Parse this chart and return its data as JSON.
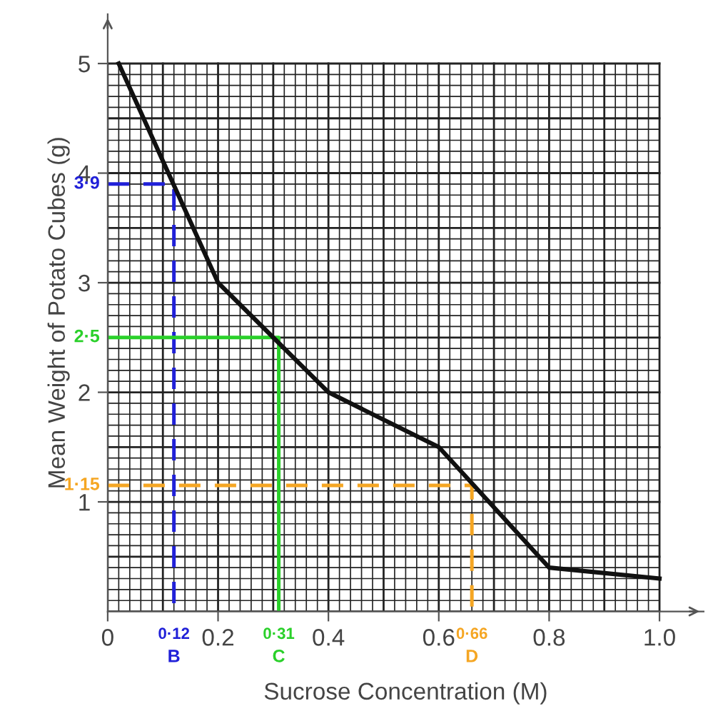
{
  "chart_data": {
    "type": "line",
    "xlabel": "Sucrose Concentration (M)",
    "ylabel": "Mean Weight of Potato Cubes (g)",
    "xlim": [
      0,
      1.08
    ],
    "ylim": [
      0,
      5.45
    ],
    "xticks": [
      0,
      0.2,
      0.4,
      0.6,
      0.8,
      {
        "value": 1.0,
        "label": "1.0"
      }
    ],
    "yticks": [
      1,
      2,
      3,
      4,
      5
    ],
    "grid": true,
    "marker": "none",
    "series": [
      {
        "color": "#111111",
        "x": [
          0.02,
          0.2,
          0.4,
          0.6,
          0.8,
          1.0
        ],
        "values": [
          5,
          3.0,
          2.0,
          1.5,
          0.4,
          0.3
        ],
        "line_style": "solid"
      },
      {
        "color": "#2020d8",
        "x": [
          0,
          0.12,
          0.12
        ],
        "values": [
          3.9,
          3.9,
          0
        ],
        "line_style": "dashed"
      },
      {
        "color": "#2ad02a",
        "x": [
          0,
          0.31,
          0.31
        ],
        "values": [
          2.5,
          2.5,
          0
        ],
        "line_style": "solid"
      },
      {
        "color": "#f5a623",
        "x": [
          0,
          0.66,
          0.66
        ],
        "values": [
          1.15,
          1.15,
          0
        ],
        "line_style": "dashed"
      }
    ],
    "annotations": [
      {
        "text": "3·9",
        "x": 0,
        "y": 3.9
      },
      {
        "text": "2·5",
        "x": 0,
        "y": 2.5
      },
      {
        "text": "1·15",
        "x": 0,
        "y": 1.15
      },
      {
        "text": "0·12",
        "x": 0.12,
        "y": 0
      },
      {
        "text": "B",
        "x": 0.12,
        "y": 0
      },
      {
        "text": "0·31",
        "x": 0.31,
        "y": 0
      },
      {
        "text": "C",
        "x": 0.31,
        "y": 0
      },
      {
        "text": "0·66",
        "x": 0.66,
        "y": 0
      },
      {
        "text": "D",
        "x": 0.66,
        "y": 0
      }
    ]
  }
}
